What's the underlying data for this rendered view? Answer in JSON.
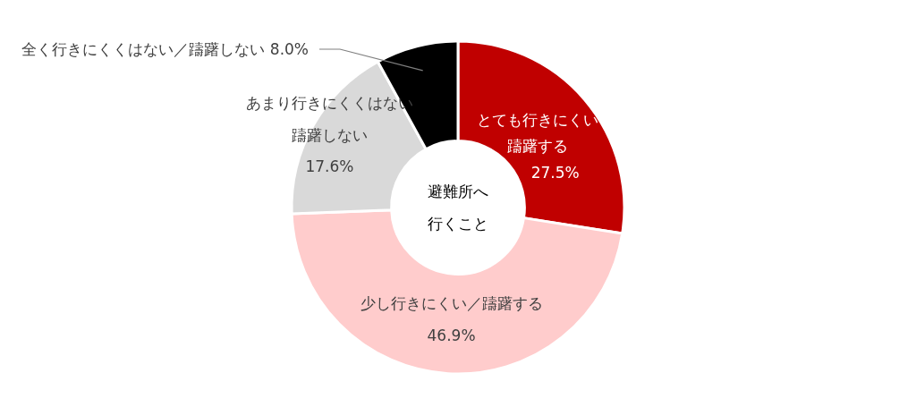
{
  "chart_data": {
    "type": "donut",
    "title": "避難所へ行くこと",
    "categories": [
      "とても行きにくい躊躇する",
      "少し行きにくい／躊躇する",
      "あまり行きにくくはない躊躇しない",
      "全く行きにくくはない／躊躇しない"
    ],
    "values": [
      27.5,
      46.9,
      17.6,
      8.0
    ],
    "value_labels": [
      "27.5%",
      "46.9%",
      "17.6%",
      "8.0%"
    ],
    "colors": [
      "#c00000",
      "#ffcccc",
      "#d9d9d9",
      "#000000"
    ]
  }
}
